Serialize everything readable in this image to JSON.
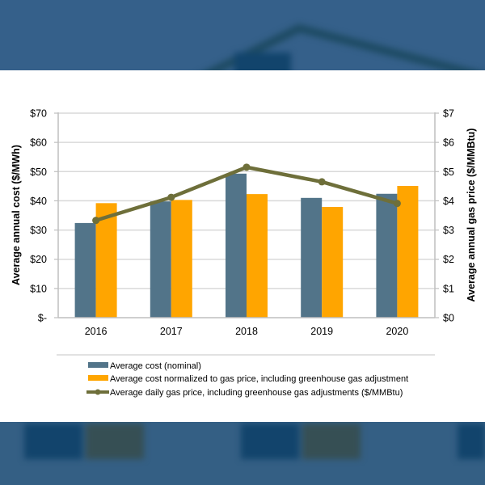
{
  "colors": {
    "nominal": "#527489",
    "normalized": "#ffa500",
    "gas_line": "#6e6f3a",
    "grid": "#d9d9d9",
    "axis": "#bfbfbf",
    "text": "#000000",
    "background": "#345f83"
  },
  "chart_data": {
    "type": "bar",
    "title": "",
    "categories": [
      "2016",
      "2017",
      "2018",
      "2019",
      "2020"
    ],
    "series": [
      {
        "name": "Average cost (nominal)",
        "type": "bar",
        "axis": "left",
        "values": [
          32.4,
          39.8,
          49.3,
          41.0,
          42.4
        ]
      },
      {
        "name": "Average cost normalized to gas price, including greenhouse gas adjustment",
        "type": "bar",
        "axis": "left",
        "values": [
          39.2,
          40.3,
          42.3,
          37.9,
          45.1
        ]
      },
      {
        "name": "Average daily gas price, including greenhouse gas adjustments ($/MMBtu)",
        "type": "line",
        "axis": "right",
        "values": [
          3.33,
          4.12,
          5.15,
          4.65,
          3.91
        ]
      }
    ],
    "ylabel": "Average annual cost ($/MWh)",
    "ylabel_right": "Average annual gas price ($/MMBtu)",
    "ylim": [
      0,
      70
    ],
    "ylim_right": [
      0,
      7
    ],
    "yticks": [
      "$-",
      "$10",
      "$20",
      "$30",
      "$40",
      "$50",
      "$60",
      "$70"
    ],
    "yticks_right": [
      "$0",
      "$1",
      "$2",
      "$3",
      "$4",
      "$5",
      "$6",
      "$7"
    ],
    "grid": true,
    "legend_position": "bottom"
  }
}
